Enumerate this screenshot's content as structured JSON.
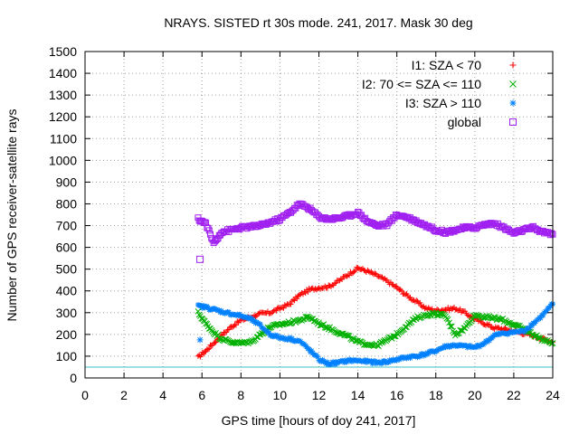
{
  "chart_data": {
    "type": "scatter",
    "title": "NRAYS. SISTED rt 30s mode. 241, 2017. Mask 30 deg",
    "xlabel": "GPS time [hours of doy 241, 2017]",
    "ylabel": "Number of GPS receiver-satellite rays",
    "xlim": [
      0,
      24
    ],
    "ylim": [
      0,
      1500
    ],
    "xticks": [
      0,
      2,
      4,
      6,
      8,
      10,
      12,
      14,
      16,
      18,
      20,
      22,
      24
    ],
    "yticks": [
      0,
      100,
      200,
      300,
      400,
      500,
      600,
      700,
      800,
      900,
      1000,
      1100,
      1200,
      1300,
      1400,
      1500
    ],
    "grid": true,
    "legend_position": "top-right",
    "threshold_line": {
      "y": 50,
      "color": "#40c0c0"
    },
    "series": [
      {
        "name": "I1: SZA < 70",
        "marker": "+",
        "color": "#ff0000",
        "x": [
          5.8,
          6.2,
          6.6,
          7.0,
          7.5,
          8.0,
          8.5,
          9.0,
          9.5,
          10.0,
          10.5,
          11.0,
          11.5,
          12.0,
          12.5,
          13.0,
          13.5,
          14.0,
          14.5,
          15.0,
          15.5,
          16.0,
          16.5,
          17.0,
          17.5,
          18.0,
          18.5,
          19.0,
          19.5,
          20.0,
          20.5,
          21.0,
          21.5,
          22.0,
          22.5,
          23.0,
          23.5,
          24.0
        ],
        "y": [
          95,
          125,
          160,
          195,
          235,
          265,
          280,
          295,
          300,
          320,
          340,
          380,
          405,
          415,
          420,
          445,
          475,
          505,
          490,
          470,
          445,
          415,
          380,
          350,
          320,
          310,
          315,
          320,
          300,
          270,
          250,
          230,
          225,
          215,
          205,
          195,
          180,
          165
        ]
      },
      {
        "name": "I2: 70 <= SZA <= 110",
        "marker": "x",
        "color": "#00b000",
        "x": [
          5.8,
          6.2,
          6.6,
          7.0,
          7.5,
          8.0,
          8.5,
          9.0,
          9.5,
          10.0,
          10.5,
          11.0,
          11.5,
          12.0,
          12.5,
          13.0,
          13.5,
          14.0,
          14.5,
          15.0,
          15.5,
          16.0,
          16.5,
          17.0,
          17.5,
          18.0,
          18.5,
          19.0,
          19.5,
          20.0,
          20.5,
          21.0,
          21.5,
          22.0,
          22.5,
          23.0,
          23.5,
          24.0
        ],
        "y": [
          300,
          250,
          210,
          180,
          165,
          160,
          165,
          200,
          235,
          245,
          255,
          265,
          280,
          250,
          230,
          210,
          190,
          165,
          155,
          150,
          175,
          200,
          240,
          275,
          290,
          295,
          285,
          200,
          230,
          290,
          280,
          275,
          265,
          245,
          225,
          200,
          175,
          160
        ]
      },
      {
        "name": "I3: SZA > 110",
        "marker": "*",
        "color": "#0080ff",
        "x": [
          5.8,
          6.2,
          6.6,
          7.0,
          7.5,
          8.0,
          8.5,
          9.0,
          9.5,
          10.0,
          10.5,
          11.0,
          11.5,
          12.0,
          12.5,
          13.0,
          13.5,
          14.0,
          14.5,
          15.0,
          15.5,
          16.0,
          16.5,
          17.0,
          17.5,
          18.0,
          18.5,
          19.0,
          19.5,
          20.0,
          20.5,
          21.0,
          21.5,
          22.0,
          22.5,
          23.0,
          23.5,
          24.0
        ],
        "y": [
          330,
          325,
          315,
          305,
          295,
          285,
          270,
          240,
          200,
          185,
          180,
          170,
          130,
          85,
          65,
          70,
          80,
          80,
          75,
          70,
          75,
          85,
          95,
          100,
          110,
          125,
          145,
          150,
          145,
          140,
          160,
          195,
          205,
          210,
          215,
          250,
          290,
          340
        ]
      },
      {
        "name": "global",
        "marker": "square",
        "color": "#a020f0",
        "x": [
          5.8,
          6.2,
          6.6,
          7.0,
          7.5,
          8.0,
          8.5,
          9.0,
          9.5,
          10.0,
          10.5,
          11.0,
          11.5,
          12.0,
          12.5,
          13.0,
          13.5,
          14.0,
          14.5,
          15.0,
          15.5,
          16.0,
          16.5,
          17.0,
          17.5,
          18.0,
          18.5,
          19.0,
          19.5,
          20.0,
          20.5,
          21.0,
          21.5,
          22.0,
          22.5,
          23.0,
          23.5,
          24.0
        ],
        "y": [
          730,
          710,
          620,
          670,
          680,
          690,
          695,
          700,
          715,
          730,
          760,
          800,
          780,
          740,
          730,
          735,
          745,
          760,
          720,
          700,
          705,
          750,
          740,
          720,
          700,
          680,
          670,
          680,
          690,
          690,
          705,
          710,
          690,
          665,
          680,
          690,
          670,
          660
        ]
      }
    ],
    "outliers": [
      {
        "series": "global",
        "x": 5.9,
        "y": 545
      },
      {
        "series": "I3: SZA > 110",
        "x": 5.9,
        "y": 175
      }
    ]
  }
}
